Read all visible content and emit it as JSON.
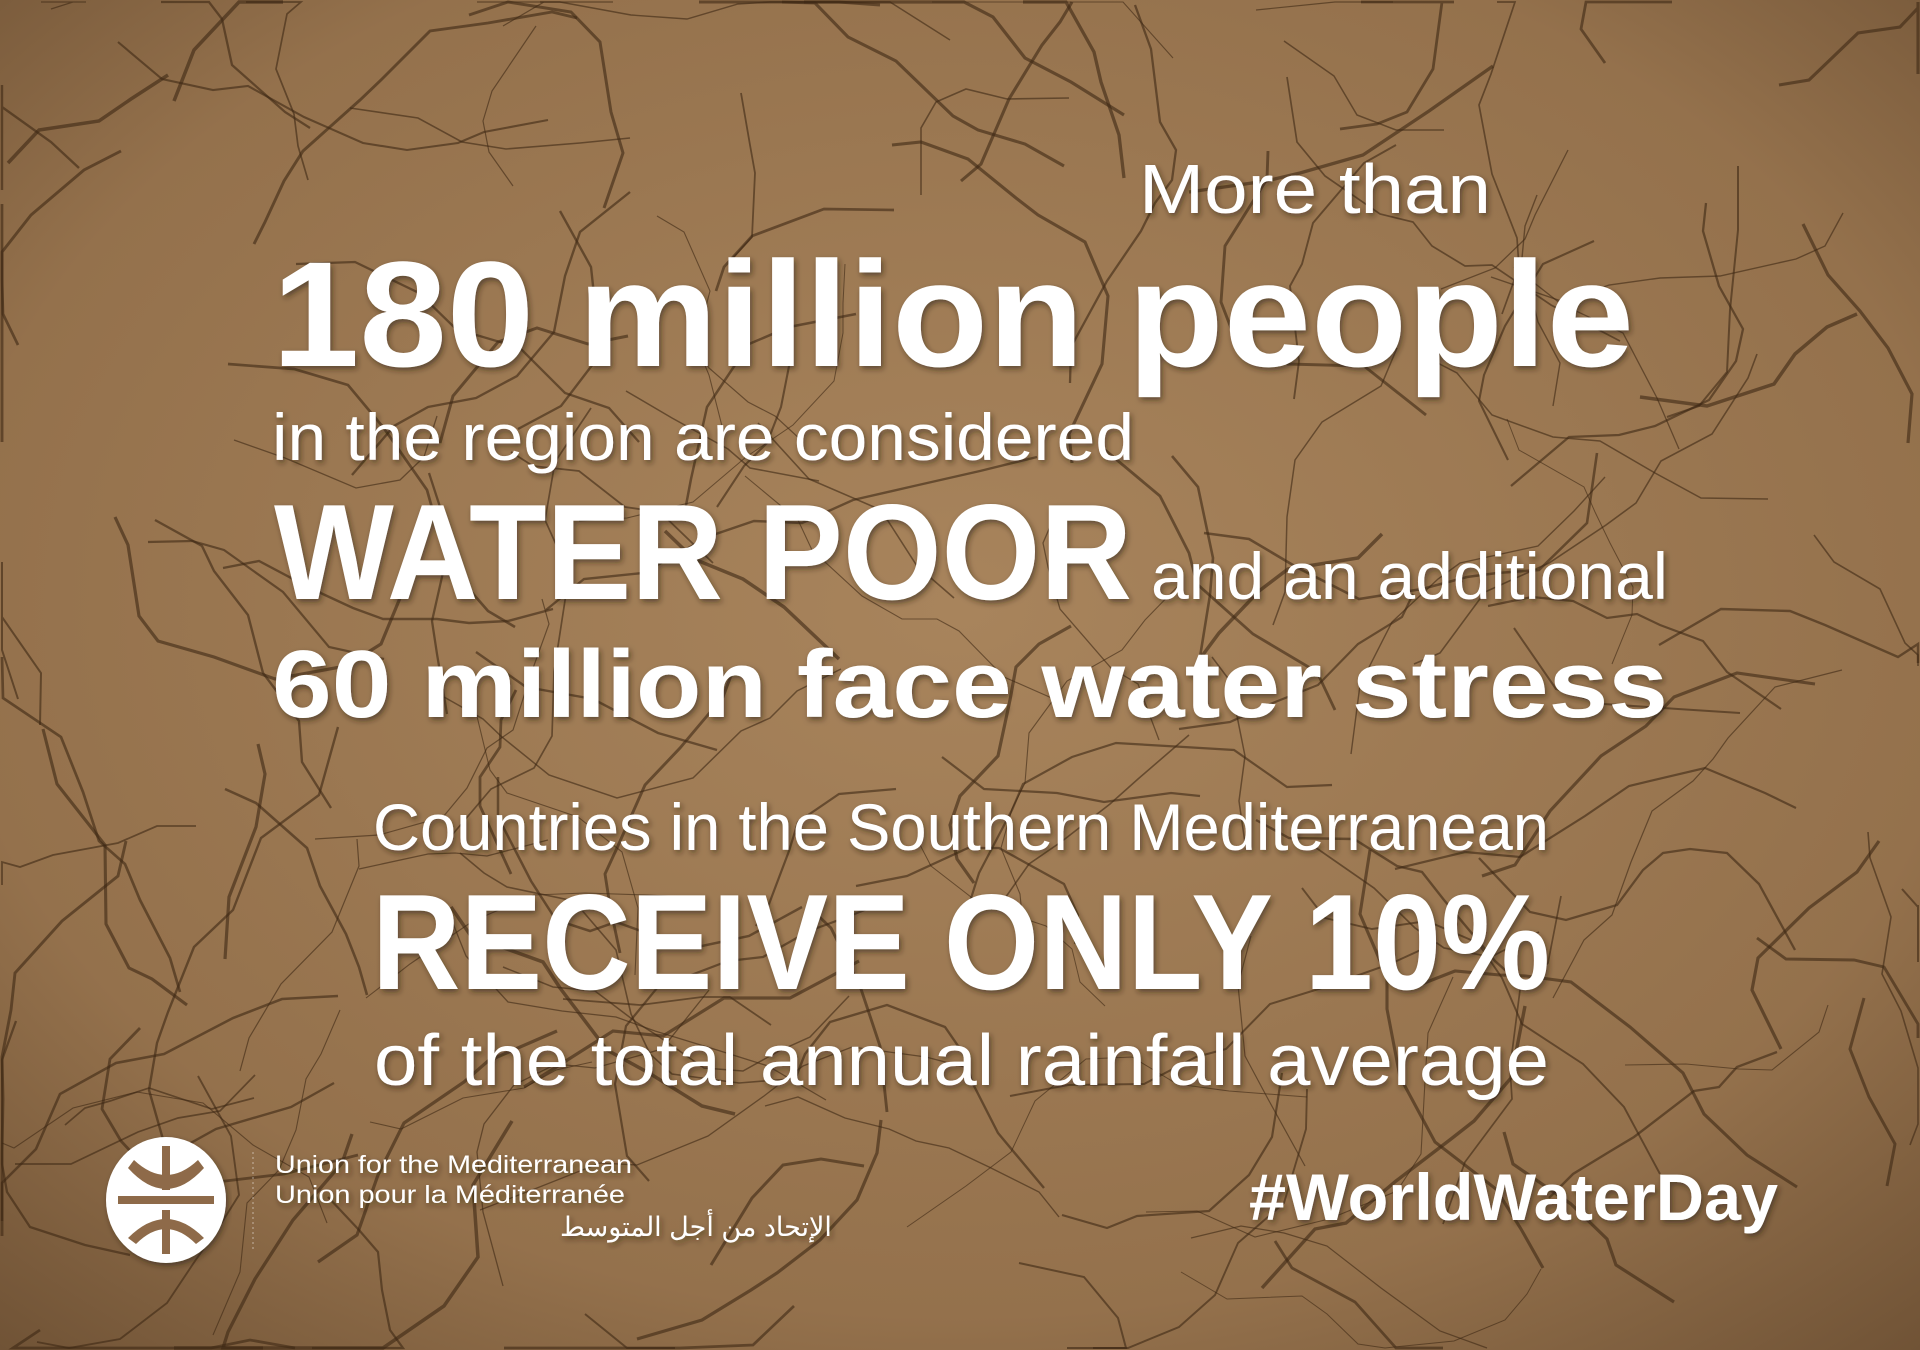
{
  "poster": {
    "line1_small": "More than",
    "line2_big": "180 million people",
    "line3_small": "in the region are considered",
    "line4_big": "WATER POOR",
    "line4_small": "and an additional",
    "line5_big": "60 million face water stress",
    "line6_small": "Countries in the Southern Mediterranean",
    "line7_big": "RECEIVE ONLY 10%",
    "line8_small": "of the total annual rainfall average",
    "hashtag": "#WorldWaterDay"
  },
  "organization": {
    "name_en": "Union for the Mediterranean",
    "name_fr": "Union pour la Méditerranée",
    "name_ar": "الإتحاد من أجل المتوسط",
    "logo_icon": "ufm-logo-icon"
  },
  "colors": {
    "background": "#9a7650",
    "text": "#ffffff"
  }
}
